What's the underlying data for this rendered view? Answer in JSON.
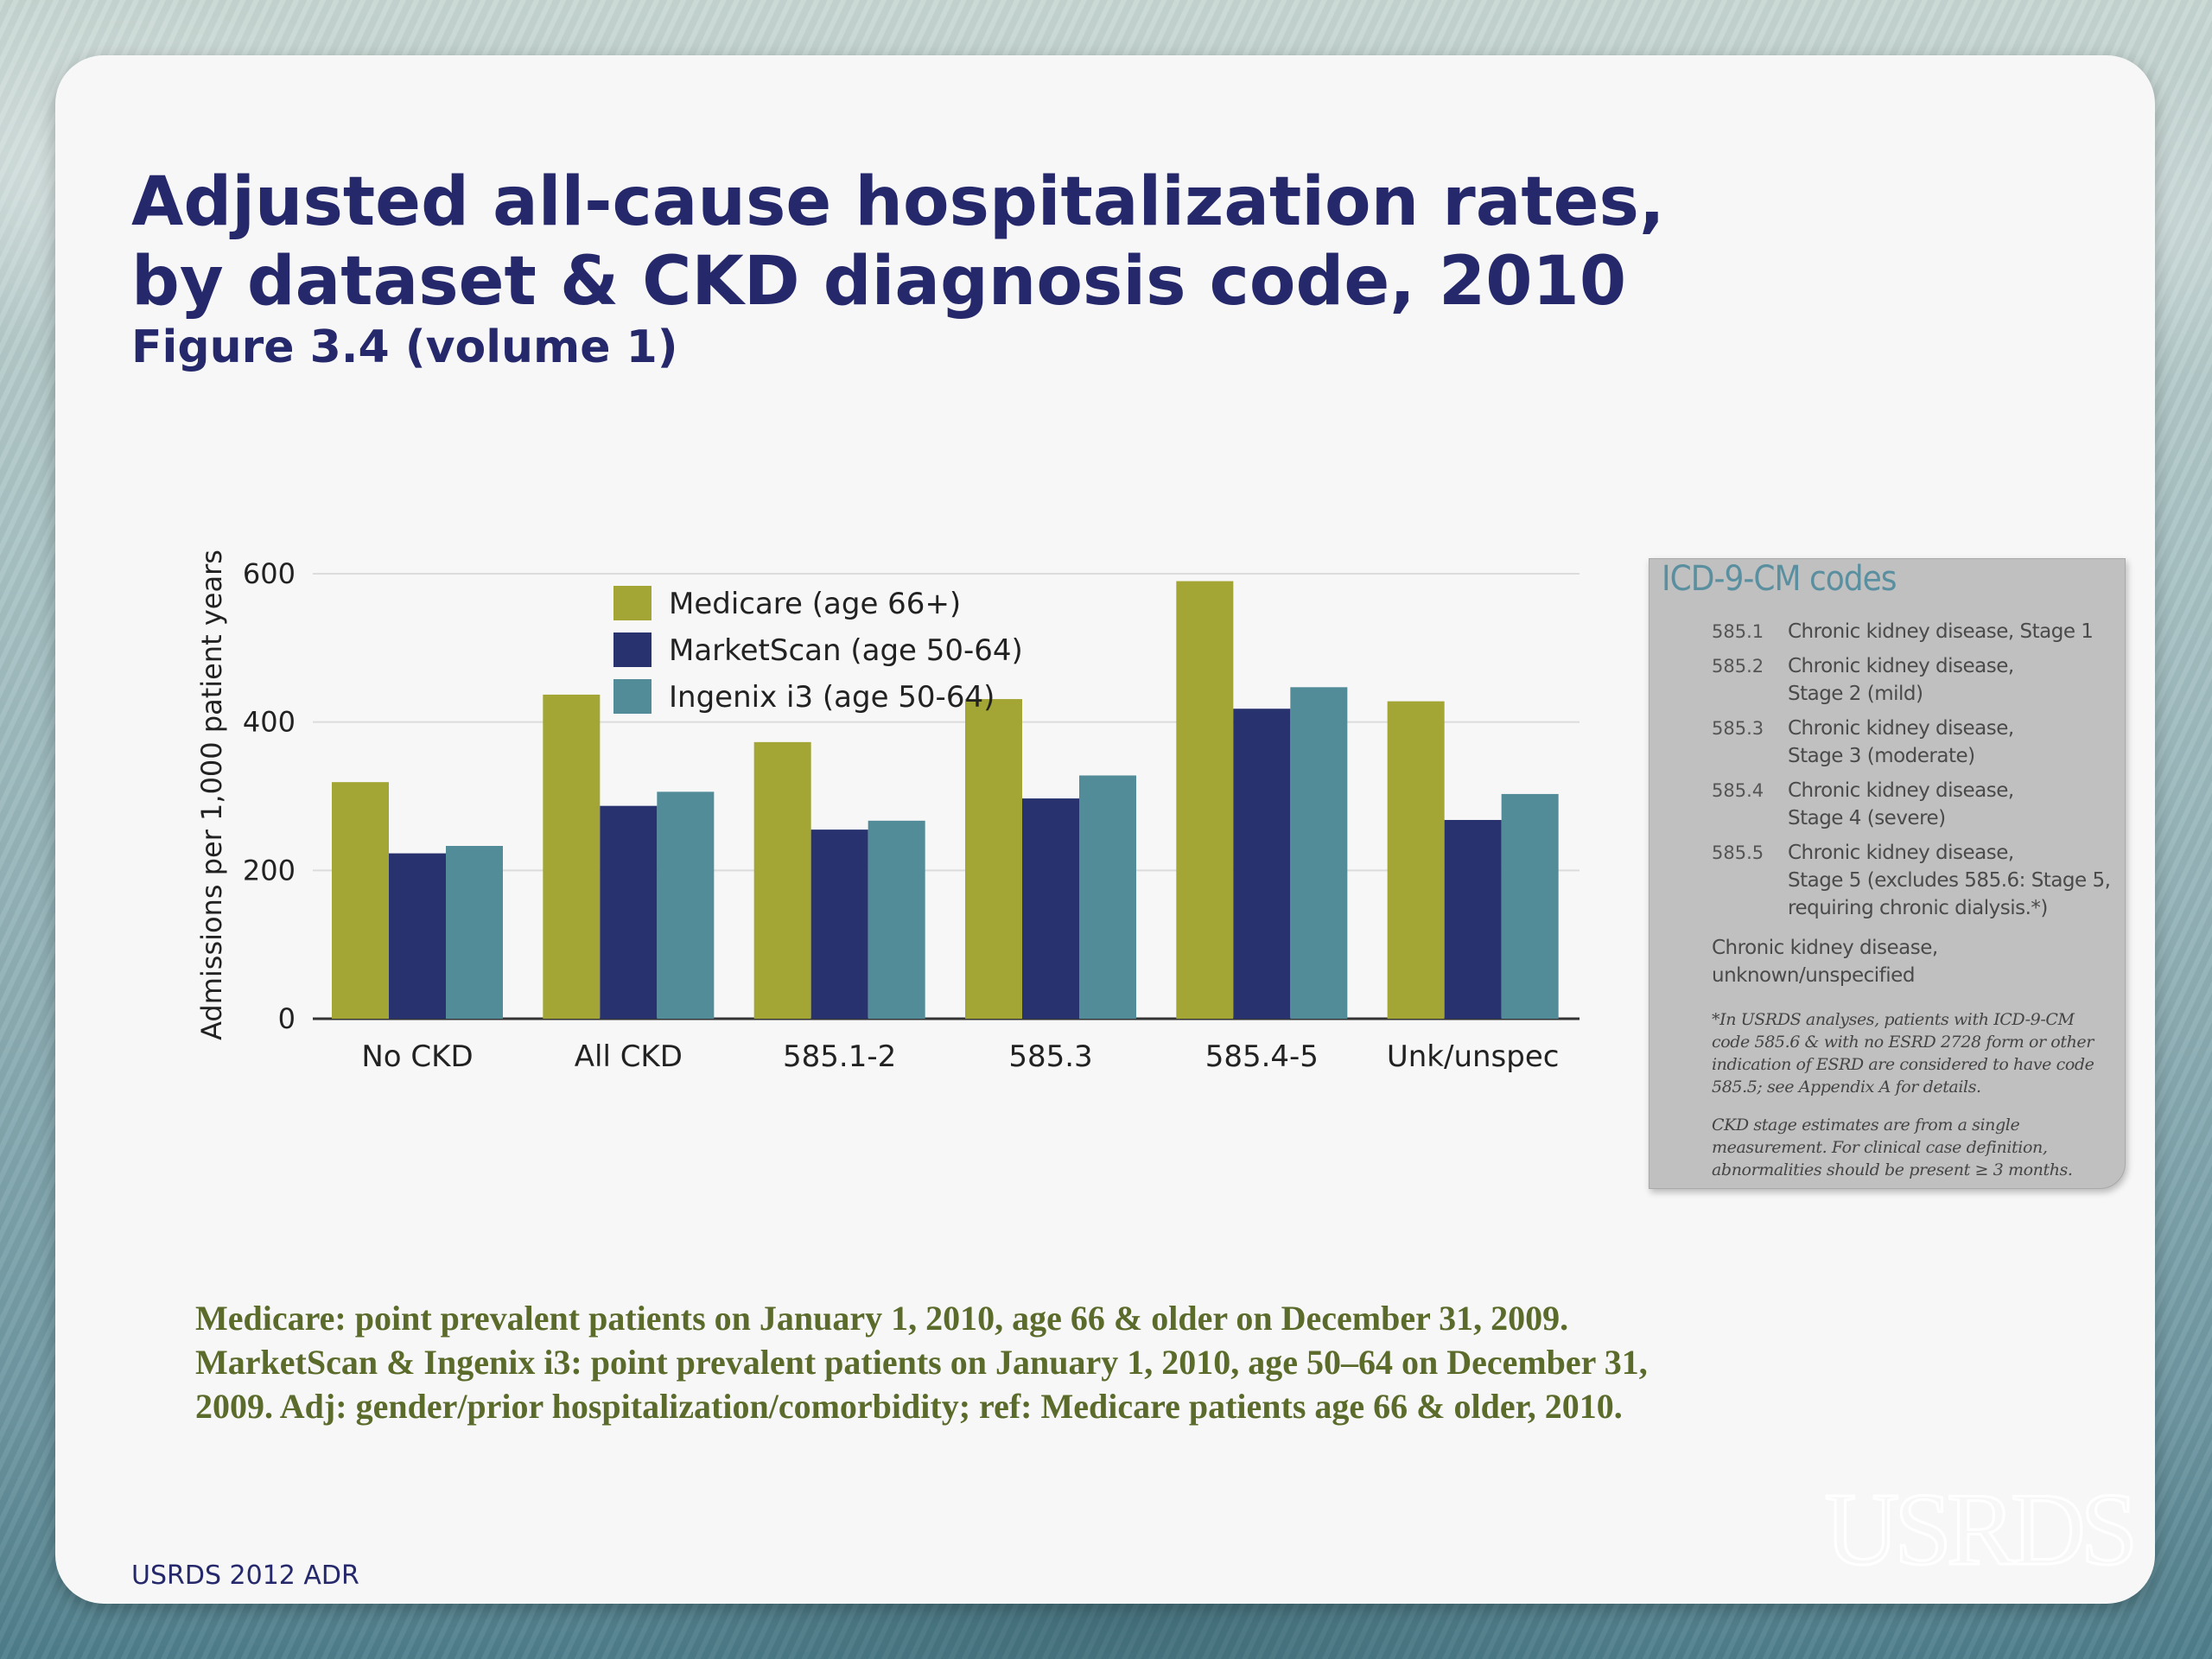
{
  "slide": {
    "title_line1": "Adjusted all-cause hospitalization rates,",
    "title_line2": "by dataset & CKD diagnosis code, 2010",
    "subtitle": "Figure 3.4 (volume 1)",
    "footnote_line1": "Medicare: point prevalent patients on January 1, 2010, age 66 & older on December 31, 2009.",
    "footnote_line2": "MarketScan & Ingenix i3: point prevalent patients on January 1, 2010, age 50–64 on December 31,",
    "footnote_line3": "2009. Adj: gender/prior hospitalization/comorbidity; ref: Medicare patients age 66 & older, 2010.",
    "source": "USRDS 2012 ADR",
    "logo_text": "USRDS"
  },
  "codes_box": {
    "title": "ICD-9-CM codes",
    "rows": [
      {
        "code": "585.1",
        "desc": "Chronic kidney disease, Stage 1"
      },
      {
        "code": "585.2",
        "desc": "Chronic kidney disease,\nStage 2 (mild)"
      },
      {
        "code": "585.3",
        "desc": "Chronic kidney disease,\nStage 3 (moderate)"
      },
      {
        "code": "585.4",
        "desc": "Chronic kidney disease,\nStage 4 (severe)"
      },
      {
        "code": "585.5",
        "desc": "Chronic kidney disease,\nStage 5 (excludes 585.6: Stage 5,\nrequiring chronic dialysis.*)"
      }
    ],
    "unspecified": "Chronic kidney disease,\nunknown/unspecified",
    "note1": "*In USRDS analyses, patients with ICD-9-CM code 585.6 & with no ESRD 2728 form or other indication of ESRD are considered to have code 585.5; see Appendix A for details.",
    "note2": "CKD stage estimates are from a single measurement. For clinical case definition, abnormalities should be present ≥ 3 months."
  },
  "chart_data": {
    "type": "bar",
    "categories": [
      "No CKD",
      "All CKD",
      "585.1-2",
      "585.3",
      "585.4-5",
      "Unk/unspec"
    ],
    "series": [
      {
        "name": "Medicare (age 66+)",
        "color": "#a3a535",
        "values": [
          319,
          437,
          373,
          431,
          590,
          428
        ]
      },
      {
        "name": "MarketScan (age 50-64)",
        "color": "#27326e",
        "values": [
          223,
          287,
          255,
          297,
          418,
          268
        ]
      },
      {
        "name": "Ingenix i3 (age 50-64)",
        "color": "#528c99",
        "values": [
          233,
          306,
          267,
          328,
          447,
          303
        ]
      }
    ],
    "ylabel": "Admissions per 1,000 patient years",
    "xlabel": "",
    "ylim": [
      0,
      600
    ],
    "yticks": [
      0,
      200,
      400,
      600
    ],
    "grid": true,
    "legend": "top-center"
  }
}
